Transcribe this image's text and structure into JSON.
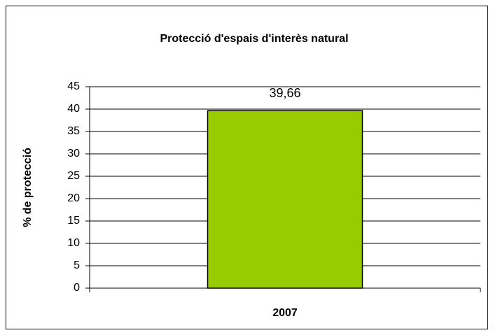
{
  "chart_data": {
    "type": "bar",
    "title": "Protecció d'espais d'interès natural",
    "y_label": "% de protecció",
    "categories": [
      "2007"
    ],
    "values": [
      39.66
    ],
    "value_labels": [
      "39,66"
    ],
    "color": "#99cc00",
    "ylim": [
      0,
      45
    ],
    "yticks": [
      0,
      5,
      10,
      15,
      20,
      25,
      30,
      35,
      40,
      45
    ],
    "grid": true
  }
}
